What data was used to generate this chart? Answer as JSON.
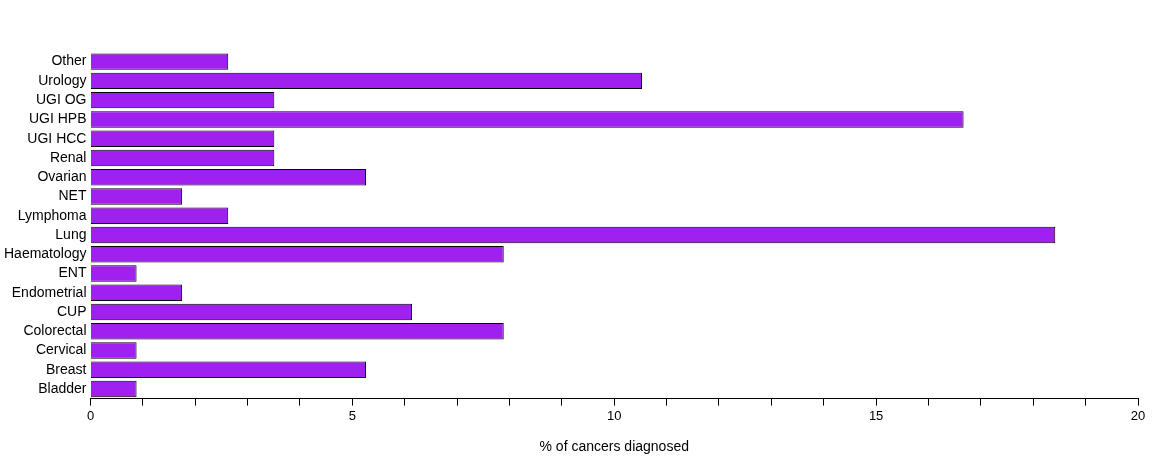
{
  "chart_data": {
    "type": "bar",
    "orientation": "horizontal",
    "xlabel": "% of cancers diagnosed",
    "categories": [
      "Other",
      "Urology",
      "UGI OG",
      "UGI HPB",
      "UGI HCC",
      "Renal",
      "Ovarian",
      "NET",
      "Lymphoma",
      "Lung",
      "Haematology",
      "ENT",
      "Endometrial",
      "CUP",
      "Colorectal",
      "Cervical",
      "Breast",
      "Bladder"
    ],
    "values": [
      2.63,
      10.53,
      3.51,
      16.67,
      3.51,
      3.51,
      5.26,
      1.75,
      2.63,
      18.42,
      7.89,
      0.88,
      1.75,
      6.14,
      7.89,
      0.88,
      5.26,
      0.88
    ],
    "color": "#a020f0",
    "xlim": [
      0,
      20
    ],
    "xticks": [
      0,
      {
        "value": 1,
        "label": null
      },
      {
        "value": 2,
        "label": null
      },
      {
        "value": 3,
        "label": null
      },
      {
        "value": 4,
        "label": null
      },
      5,
      {
        "value": 6,
        "label": null
      },
      {
        "value": 7,
        "label": null
      },
      {
        "value": 8,
        "label": null
      },
      {
        "value": 9,
        "label": null
      },
      10,
      {
        "value": 11,
        "label": null
      },
      {
        "value": 12,
        "label": null
      },
      {
        "value": 13,
        "label": null
      },
      {
        "value": 14,
        "label": null
      },
      15,
      {
        "value": 16,
        "label": null
      },
      {
        "value": 17,
        "label": null
      },
      {
        "value": 18,
        "label": null
      },
      {
        "value": 19,
        "label": null
      },
      20
    ],
    "grid": false,
    "legend": false
  }
}
